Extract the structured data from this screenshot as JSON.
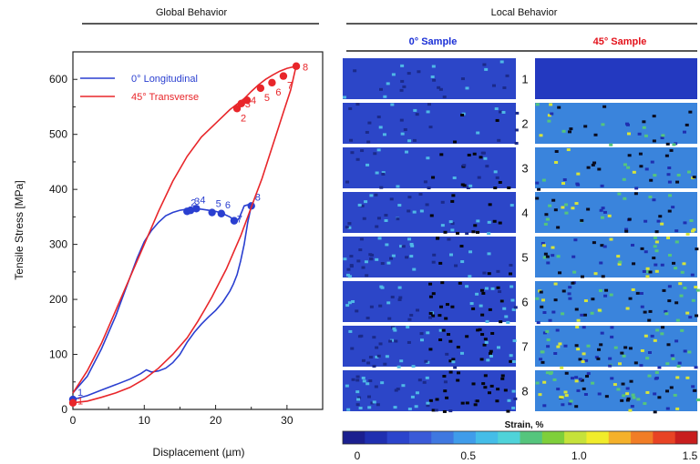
{
  "header": {
    "global_title": "Global Behavior",
    "local_title": "Local Behavior",
    "sample_0_title": "0° Sample",
    "sample_45_title": "45° Sample"
  },
  "colors": {
    "series_0": "#2a3fd0",
    "series_45": "#e8262a",
    "sample_0_title": "#1a2fd6",
    "sample_45_title": "#e3121b"
  },
  "chart_data": {
    "type": "line",
    "xlabel": "Displacement (µm)",
    "ylabel": "Tensile Stress [MPa]",
    "xlim": [
      0,
      35
    ],
    "ylim": [
      0,
      650
    ],
    "xticks": [
      0,
      10,
      20,
      30
    ],
    "yticks": [
      0,
      100,
      200,
      300,
      400,
      500,
      600
    ],
    "grid": false,
    "legend_position": "top-left",
    "series": [
      {
        "name": "0°  Longitudinal",
        "color": "#2a3fd0",
        "x": [
          0,
          2,
          4,
          6,
          8,
          9,
          10,
          11,
          12,
          13,
          14,
          15,
          16,
          17,
          18,
          19,
          20,
          21,
          22,
          22.5,
          23,
          23.3,
          23.7,
          24,
          24.5,
          25,
          24.5,
          24,
          23.5,
          23,
          22.5,
          22,
          21,
          20,
          19,
          18,
          17,
          16,
          15,
          14,
          13,
          12,
          11,
          10.3,
          9.5,
          8,
          6,
          4,
          2,
          0
        ],
        "y": [
          30,
          60,
          110,
          170,
          240,
          275,
          305,
          325,
          340,
          352,
          358,
          362,
          364,
          365,
          364,
          362,
          360,
          356,
          350,
          345,
          343,
          348,
          360,
          370,
          372,
          370,
          340,
          300,
          270,
          245,
          228,
          215,
          195,
          180,
          168,
          155,
          140,
          122,
          100,
          85,
          75,
          70,
          68,
          72,
          65,
          55,
          45,
          35,
          25,
          18
        ],
        "marked_points": [
          {
            "label": "1",
            "x": 0,
            "y": 18
          },
          {
            "label": "2",
            "x": 16,
            "y": 360
          },
          {
            "label": "3",
            "x": 16.5,
            "y": 362
          },
          {
            "label": "4",
            "x": 17.3,
            "y": 365
          },
          {
            "label": "5",
            "x": 19.5,
            "y": 358
          },
          {
            "label": "6",
            "x": 20.8,
            "y": 356
          },
          {
            "label": "7",
            "x": 22.6,
            "y": 343
          },
          {
            "label": "8",
            "x": 25,
            "y": 370
          }
        ]
      },
      {
        "name": "45° Transverse",
        "color": "#e8262a",
        "x": [
          0,
          2,
          4,
          6,
          8,
          10,
          12,
          14,
          16,
          18,
          20,
          22,
          23,
          24,
          25,
          26,
          27,
          28,
          29,
          30,
          31,
          31.3,
          30.5,
          29.5,
          28.5,
          27.5,
          26.5,
          25.5,
          24.5,
          23.5,
          22.5,
          21.5,
          20.5,
          19.5,
          18.5,
          17.5,
          16,
          14,
          12,
          10,
          8,
          6,
          4,
          2,
          0
        ],
        "y": [
          30,
          70,
          120,
          180,
          240,
          300,
          360,
          415,
          460,
          495,
          520,
          545,
          555,
          565,
          578,
          590,
          600,
          608,
          615,
          620,
          623,
          625,
          580,
          540,
          500,
          460,
          420,
          385,
          350,
          315,
          285,
          255,
          230,
          205,
          182,
          160,
          130,
          100,
          75,
          55,
          40,
          30,
          22,
          15,
          12
        ],
        "marked_points": [
          {
            "label": "1",
            "x": 0,
            "y": 12
          },
          {
            "label": "2",
            "x": 23,
            "y": 547
          },
          {
            "label": "3",
            "x": 23.6,
            "y": 556
          },
          {
            "label": "4",
            "x": 24.4,
            "y": 562
          },
          {
            "label": "5",
            "x": 26.3,
            "y": 584
          },
          {
            "label": "6",
            "x": 27.9,
            "y": 594
          },
          {
            "label": "7",
            "x": 29.5,
            "y": 606
          },
          {
            "label": "8",
            "x": 31.3,
            "y": 624
          }
        ]
      }
    ]
  },
  "local": {
    "row_labels": [
      "1",
      "2",
      "3",
      "4",
      "5",
      "6",
      "7",
      "8"
    ],
    "strain_label": "Strain, %",
    "strain_ticks": [
      "0",
      "0.5",
      "1.0",
      "1.5"
    ],
    "strain_colors": [
      "#1b1f8f",
      "#1f2fb0",
      "#2b44cc",
      "#3a5ad8",
      "#3f78e0",
      "#3f9cea",
      "#44bde8",
      "#4fd3d9",
      "#55c57d",
      "#7fcf3b",
      "#c6e23a",
      "#f1ec2b",
      "#f5b12a",
      "#f17d26",
      "#e84324",
      "#c81e1e"
    ]
  }
}
